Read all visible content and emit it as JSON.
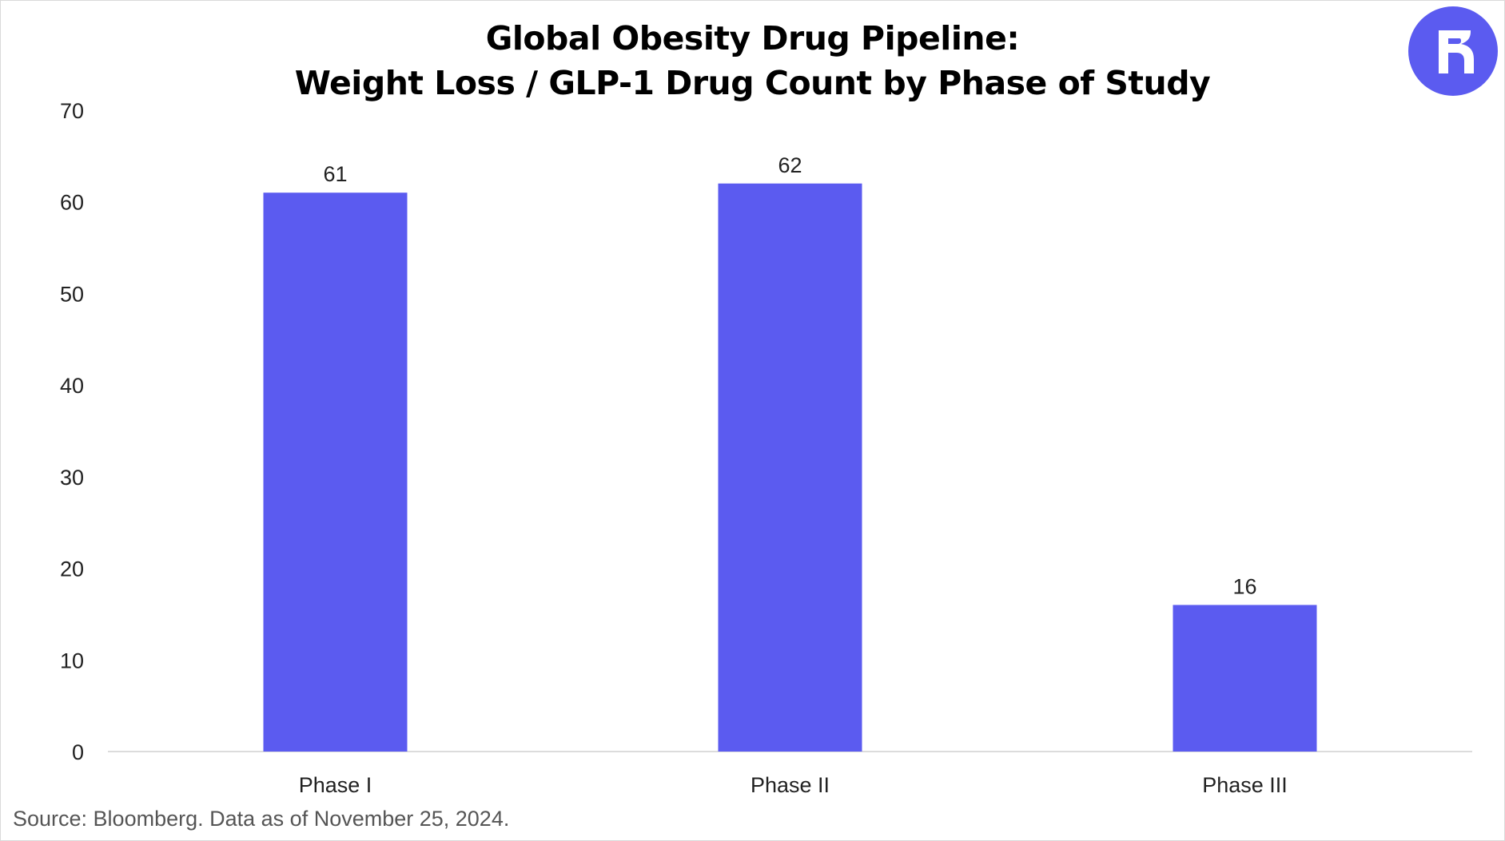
{
  "chart_data": {
    "type": "bar",
    "title": "Global Obesity Drug Pipeline:",
    "subtitle": "Weight Loss / GLP-1 Drug Count by Phase of Study",
    "categories": [
      "Phase I",
      "Phase II",
      "Phase III"
    ],
    "values": [
      61,
      62,
      16
    ],
    "data_labels": [
      "61",
      "62",
      "16"
    ],
    "xlabel": "",
    "ylabel": "",
    "ylim": [
      0,
      70
    ],
    "yticks": [
      0,
      10,
      20,
      30,
      40,
      50,
      60,
      70
    ],
    "grid": false,
    "bar_color": "#5b5bf0",
    "legend": "none"
  },
  "source": "Source: Bloomberg. Data as of November 25, 2024.",
  "logo": {
    "icon": "brand-logo-icon",
    "color": "#5b5bf0"
  }
}
